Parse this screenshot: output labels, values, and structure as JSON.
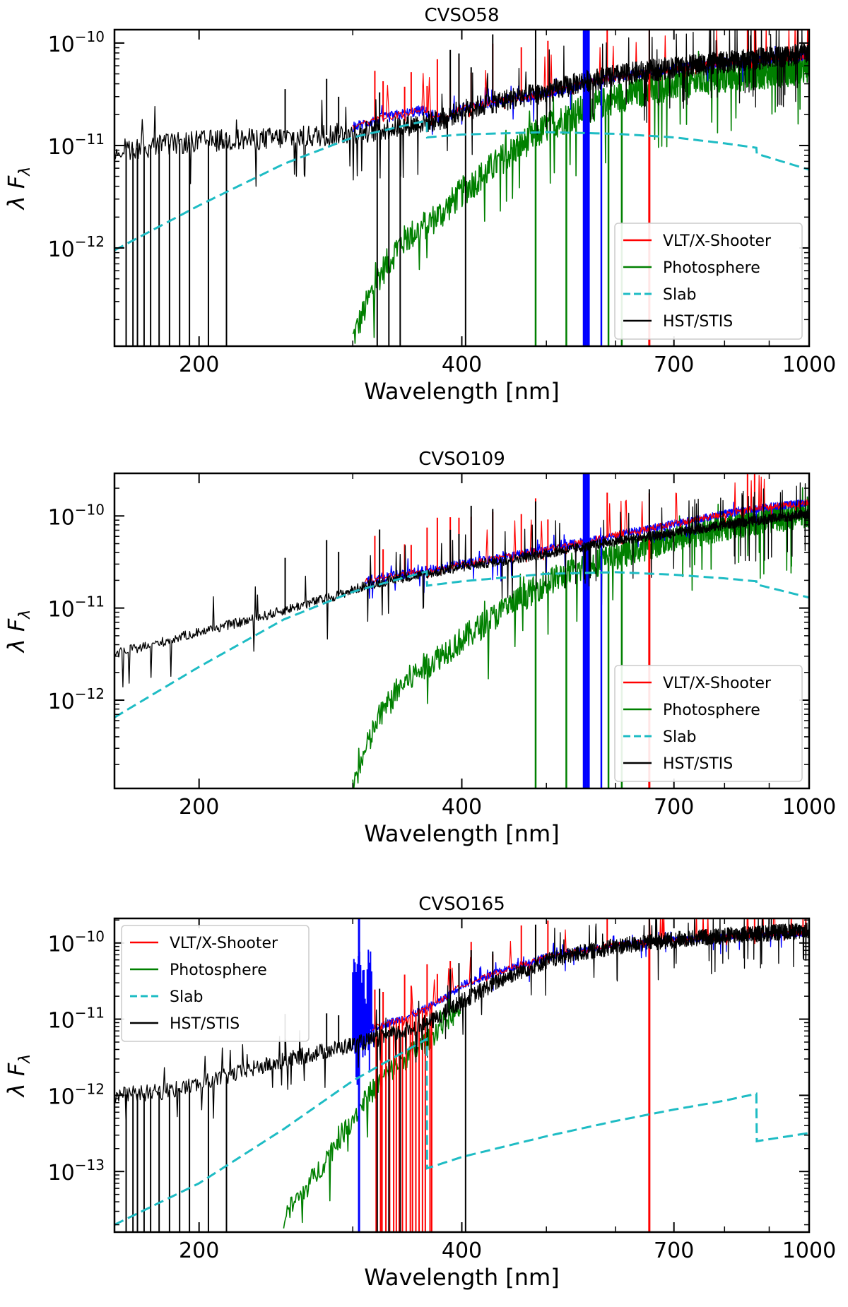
{
  "figure": {
    "shared": {
      "xlabel": "Wavelength [nm]",
      "ylabel_main": "λ F",
      "ylabel_sub": "λ",
      "xscale": "log",
      "yscale": "log",
      "xlim": [
        160,
        1000
      ],
      "xticks": [
        200,
        400,
        700,
        1000
      ],
      "legend_entries": [
        "VLT/X-Shooter",
        "Photosphere",
        "Slab",
        "HST/STIS"
      ],
      "colors": {
        "xshooter": "#ff0000",
        "xshooter_uvb": "#0000ff",
        "photosphere": "#008000",
        "slab": "#1ebcc4",
        "stis": "#000000"
      }
    }
  },
  "chart_data": [
    {
      "type": "line",
      "title": "CVSO58",
      "xlabel": "Wavelength [nm]",
      "ylabel": "λ F_λ",
      "xlim": [
        160,
        1000
      ],
      "ylim": [
        1.1e-13,
        1.35e-10
      ],
      "ytick_exponents": [
        -12,
        -11,
        -10
      ],
      "legend_position": "lower-right",
      "series": [
        {
          "name": "VLT/X-Shooter",
          "key": "xshooter",
          "x": [
            300,
            320,
            340,
            360,
            380,
            400,
            450,
            500,
            550,
            600,
            700,
            800,
            900,
            1000
          ],
          "y": [
            1.5e-11,
            1.8e-11,
            2e-11,
            2.2e-11,
            1.8e-11,
            2.3e-11,
            2.8e-11,
            3.2e-11,
            4e-11,
            4.6e-11,
            5.6e-11,
            6.5e-11,
            7e-11,
            7.5e-11
          ]
        },
        {
          "name": "Photosphere",
          "key": "photosphere",
          "x": [
            300,
            320,
            340,
            360,
            380,
            400,
            450,
            500,
            550,
            600,
            650,
            700,
            800,
            900,
            1000
          ],
          "y": [
            1.3e-13,
            5e-13,
            1.1e-12,
            1.6e-12,
            2.2e-12,
            3.5e-12,
            8e-12,
            1.5e-11,
            2.2e-11,
            2.9e-11,
            3.4e-11,
            3.9e-11,
            4.6e-11,
            5.1e-11,
            5.6e-11
          ]
        },
        {
          "name": "Slab",
          "key": "slab",
          "x": [
            160,
            200,
            250,
            300,
            364.6,
            365,
            400,
            500,
            600,
            700,
            800,
            870,
            871,
            1000
          ],
          "y": [
            9.5e-13,
            2.6e-12,
            6.6e-12,
            1.2e-11,
            1.75e-11,
            1.2e-11,
            1.28e-11,
            1.35e-11,
            1.3e-11,
            1.2e-11,
            1.05e-11,
            9.5e-12,
            8.3e-12,
            5.8e-12
          ]
        },
        {
          "name": "HST/STIS",
          "key": "stis",
          "x": [
            160,
            180,
            200,
            230,
            260,
            290,
            320,
            350,
            380,
            400,
            450,
            500,
            550,
            600,
            700,
            800,
            900,
            1000
          ],
          "y": [
            9e-12,
            1e-11,
            1.1e-11,
            1.15e-11,
            1.2e-11,
            1.3e-11,
            1.4e-11,
            1.6e-11,
            1.8e-11,
            2.2e-11,
            2.8e-11,
            3.3e-11,
            4.2e-11,
            4.8e-11,
            5.8e-11,
            6.5e-11,
            7.2e-11,
            8e-11
          ]
        }
      ]
    },
    {
      "type": "line",
      "title": "CVSO109",
      "xlabel": "Wavelength [nm]",
      "ylabel": "λ F_λ",
      "xlim": [
        160,
        1000
      ],
      "ylim": [
        1.1e-13,
        2.9e-10
      ],
      "ytick_exponents": [
        -12,
        -11,
        -10
      ],
      "legend_position": "lower-right",
      "series": [
        {
          "name": "VLT/X-Shooter",
          "key": "xshooter",
          "x": [
            310,
            340,
            370,
            400,
            450,
            500,
            550,
            600,
            700,
            800,
            900,
            1000
          ],
          "y": [
            2e-11,
            2.3e-11,
            2.6e-11,
            3e-11,
            3.6e-11,
            4.3e-11,
            5.2e-11,
            6.2e-11,
            8.2e-11,
            1.05e-10,
            1.25e-10,
            1.4e-10
          ]
        },
        {
          "name": "Photosphere",
          "key": "photosphere",
          "x": [
            300,
            320,
            340,
            360,
            380,
            400,
            450,
            500,
            550,
            600,
            700,
            800,
            900,
            1000
          ],
          "y": [
            1.2e-13,
            6e-13,
            1.4e-12,
            2.2e-12,
            3.2e-12,
            4.5e-12,
            1e-11,
            1.9e-11,
            2.7e-11,
            3.7e-11,
            5.7e-11,
            7.6e-11,
            9.2e-11,
            1.05e-10
          ]
        },
        {
          "name": "Slab",
          "key": "slab",
          "x": [
            160,
            200,
            250,
            300,
            364.6,
            365,
            400,
            500,
            600,
            700,
            800,
            870,
            871,
            1000
          ],
          "y": [
            6.5e-13,
            2.3e-12,
            7.5e-12,
            1.5e-11,
            2.5e-11,
            1.75e-11,
            1.95e-11,
            2.35e-11,
            2.45e-11,
            2.3e-11,
            2.1e-11,
            1.95e-11,
            1.8e-11,
            1.3e-11
          ]
        },
        {
          "name": "HST/STIS",
          "key": "stis",
          "x": [
            160,
            180,
            200,
            230,
            260,
            290,
            310,
            340,
            370,
            400,
            450,
            500,
            550,
            600,
            700,
            800,
            900,
            1000
          ],
          "y": [
            3.2e-12,
            4.2e-12,
            5.5e-12,
            7.5e-12,
            1.05e-11,
            1.4e-11,
            1.75e-11,
            2.1e-11,
            2.4e-11,
            2.8e-11,
            3.3e-11,
            3.9e-11,
            4.6e-11,
            5.3e-11,
            6.5e-11,
            8e-11,
            9.3e-11,
            1.05e-10
          ]
        }
      ]
    },
    {
      "type": "line",
      "title": "CVSO165",
      "xlabel": "Wavelength [nm]",
      "ylabel": "λ F_λ",
      "xlim": [
        160,
        1000
      ],
      "ylim": [
        1.6e-14,
        2.1e-10
      ],
      "ytick_exponents": [
        -13,
        -12,
        -11,
        -10
      ],
      "legend_position": "upper-left",
      "series": [
        {
          "name": "VLT/X-Shooter",
          "key": "xshooter",
          "x": [
            300,
            320,
            340,
            360,
            380,
            400,
            450,
            500,
            550,
            600,
            700,
            800,
            900,
            1000
          ],
          "y": [
            6e-12,
            8e-12,
            1e-11,
            1.3e-11,
            1.8e-11,
            2.8e-11,
            4.5e-11,
            6.5e-11,
            8e-11,
            9.5e-11,
            1.1e-10,
            1.2e-10,
            1.3e-10,
            1.35e-10
          ]
        },
        {
          "name": "Photosphere",
          "key": "photosphere",
          "x": [
            250,
            270,
            290,
            310,
            330,
            350,
            370,
            380,
            400
          ],
          "y": [
            2.5e-14,
            8e-14,
            2.8e-13,
            9e-13,
            2e-12,
            3.5e-12,
            6e-12,
            9e-12,
            1.4e-11
          ]
        },
        {
          "name": "Slab",
          "key": "slab",
          "x": [
            160,
            200,
            250,
            300,
            364.6,
            365,
            400,
            500,
            600,
            700,
            800,
            870,
            871,
            1000
          ],
          "y": [
            2e-14,
            7e-14,
            3.6e-13,
            1.55e-12,
            5.5e-12,
            1.1e-13,
            1.55e-13,
            2.9e-13,
            4.6e-13,
            6.5e-13,
            8.5e-13,
            1.05e-12,
            2.5e-13,
            3.2e-13
          ]
        },
        {
          "name": "HST/STIS",
          "key": "stis",
          "x": [
            160,
            180,
            200,
            230,
            260,
            290,
            320,
            350,
            370,
            400,
            450,
            500,
            550,
            600,
            700,
            800,
            900,
            1000
          ],
          "y": [
            1e-12,
            1.1e-12,
            1.4e-12,
            2.2e-12,
            3.2e-12,
            4.2e-12,
            5.5e-12,
            7.5e-12,
            9.5e-12,
            1.7e-11,
            3.6e-11,
            5.8e-11,
            7.5e-11,
            9e-11,
            1.1e-10,
            1.25e-10,
            1.35e-10,
            1.45e-10
          ]
        }
      ]
    }
  ]
}
